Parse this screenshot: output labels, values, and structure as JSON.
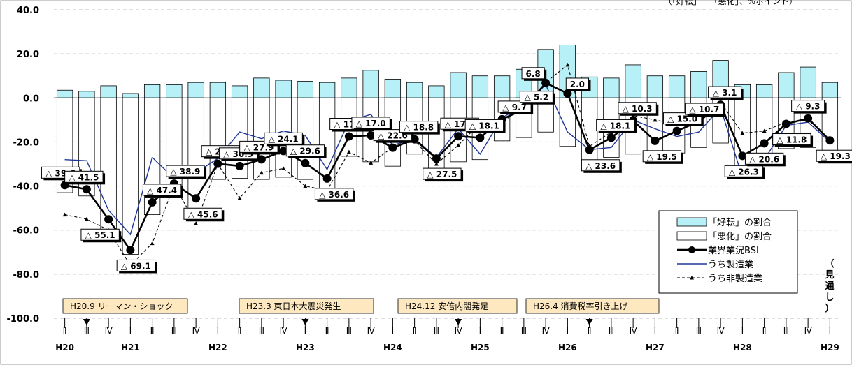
{
  "chart_data": {
    "type": "bar",
    "title": "（「好転」－「悪化」、%ポイント）",
    "y_range": [
      -100,
      40
    ],
    "y_ticks": [
      "40.0",
      "20.0",
      "0.0",
      "-20.0",
      "-40.0",
      "-60.0",
      "-80.0",
      "-100.0"
    ],
    "quarter_labels": [
      "Ⅱ",
      "Ⅲ",
      "Ⅳ",
      "Ⅰ",
      "Ⅱ",
      "Ⅲ",
      "Ⅳ",
      "Ⅰ",
      "Ⅱ",
      "Ⅲ",
      "Ⅳ",
      "Ⅰ",
      "Ⅱ",
      "Ⅲ",
      "Ⅳ",
      "Ⅰ",
      "Ⅱ",
      "Ⅲ",
      "Ⅳ",
      "Ⅰ",
      "Ⅱ",
      "Ⅲ",
      "Ⅳ",
      "Ⅰ",
      "Ⅱ",
      "Ⅲ",
      "Ⅳ",
      "Ⅰ",
      "Ⅱ",
      "Ⅲ",
      "Ⅳ",
      "Ⅰ",
      "Ⅱ",
      "Ⅲ",
      "Ⅳ",
      "Ⅰ"
    ],
    "year_labels": [
      {
        "index": 0,
        "label": "H20"
      },
      {
        "index": 3,
        "label": "H21"
      },
      {
        "index": 7,
        "label": "H22"
      },
      {
        "index": 11,
        "label": "H23"
      },
      {
        "index": 15,
        "label": "H24"
      },
      {
        "index": 19,
        "label": "H25"
      },
      {
        "index": 23,
        "label": "H26"
      },
      {
        "index": 27,
        "label": "H27"
      },
      {
        "index": 31,
        "label": "H28"
      },
      {
        "index": 35,
        "label": "H29"
      }
    ],
    "series": [
      {
        "name": "「好転」の割合",
        "values": [
          3.5,
          3,
          5.5,
          2,
          6,
          6,
          7,
          7,
          5.5,
          9,
          8,
          7.5,
          7,
          9,
          12.5,
          8.5,
          7,
          5.5,
          11.5,
          10,
          10,
          13,
          22,
          24,
          9.5,
          9,
          15,
          10,
          10,
          12,
          17,
          6,
          6,
          11.5,
          14,
          7
        ]
      },
      {
        "name": "「悪化」の割合",
        "values": [
          -43,
          -44.5,
          -60.5,
          -71,
          -53,
          -45,
          -52.5,
          -37,
          -36.5,
          -37,
          -36,
          -37,
          -43.5,
          -26.5,
          -29,
          -31,
          -25.5,
          -33,
          -29,
          -28,
          -19.5,
          -18,
          -15.5,
          -22,
          -33,
          -27,
          -25.5,
          -29.5,
          -25,
          -22.5,
          -20.5,
          -32.5,
          -26.5,
          -23,
          -22.5,
          -26.5
        ]
      },
      {
        "name": "業界業況BSI",
        "values": [
          -39.6,
          -41.5,
          -55.1,
          -69.1,
          -47.4,
          -38.9,
          -45.6,
          -29.9,
          -30.9,
          -27.9,
          -24.1,
          -29.6,
          -36.6,
          -17.5,
          -17.0,
          -22.6,
          -18.8,
          -27.5,
          -17.4,
          -18.1,
          -9.7,
          -5.2,
          6.8,
          2.0,
          -23.6,
          -18.1,
          -10.3,
          -19.5,
          -15.0,
          -10.7,
          -3.1,
          -26.3,
          -20.6,
          -11.8,
          -9.3,
          -19.3
        ]
      },
      {
        "name": "うち製造業",
        "values": [
          -28,
          -28.5,
          -51,
          -62,
          -27,
          -36.5,
          -34,
          -27.5,
          -15.5,
          -18.5,
          -15,
          -17,
          -32.5,
          -10.5,
          -7.5,
          -21.5,
          -18.5,
          -27,
          -14,
          -25.5,
          -9,
          -3.5,
          6,
          -15.5,
          -23.5,
          -22.5,
          -10,
          -14,
          -17.5,
          -15.5,
          -4.5,
          -36,
          -28,
          -12.5,
          -11,
          -20
        ]
      },
      {
        "name": "うち非製造業",
        "values": [
          -53,
          -55,
          -60,
          -76,
          -66,
          -39.5,
          -57,
          -30,
          -45.5,
          -34,
          -32,
          -40,
          -42,
          -24.5,
          -29.5,
          -22.5,
          -19.5,
          -30,
          -21.5,
          -11.5,
          -11,
          -4,
          7,
          15,
          -22,
          -15.5,
          -8,
          -10,
          -12,
          -6.5,
          -2,
          -16,
          -15,
          -11,
          -10,
          -19
        ]
      }
    ],
    "data_labels": [
      "△ 39.6",
      "△ 41.5",
      "△ 55.1",
      "△ 69.1",
      "△ 47.4",
      "△ 38.9",
      "△ 45.6",
      "△ 29.9",
      "△ 30.9",
      "△ 27.9",
      "△ 24.1",
      "△ 29.6",
      "△ 36.6",
      "△ 17.5",
      "△ 17.0",
      "△ 22.6",
      "△ 18.8",
      "△ 27.5",
      "△ 17.4",
      "△ 18.1",
      "△ 9.7",
      "△ 5.2",
      "6.8",
      "2.0",
      "△ 23.6",
      "△ 18.1",
      "△ 10.3",
      "△ 19.5",
      "△ 15.0",
      "△ 10.7",
      "△ 3.1",
      "△ 26.3",
      "△ 20.6",
      "△ 11.8",
      "△ 9.3",
      "△ 19.3"
    ],
    "events": [
      {
        "label": "H20.9 リーマン・ショック",
        "index": 1
      },
      {
        "label": "H23.3 東日本大震災発生",
        "index": 11
      },
      {
        "label": "H24.12 安倍内閣発足",
        "index": 18
      },
      {
        "label": "H26.4 消費税率引き上げ",
        "index": 24
      }
    ],
    "forecast_label": "（見通し）",
    "legend_position": "bottom-right",
    "colors": {
      "good_fill": "#b8f0f8",
      "bad_fill": "#ffffff",
      "bsi": "#000000",
      "manufacturing": "#1f3699",
      "non_manufacturing": "#000000",
      "event_fill": "#fde8c0"
    }
  }
}
